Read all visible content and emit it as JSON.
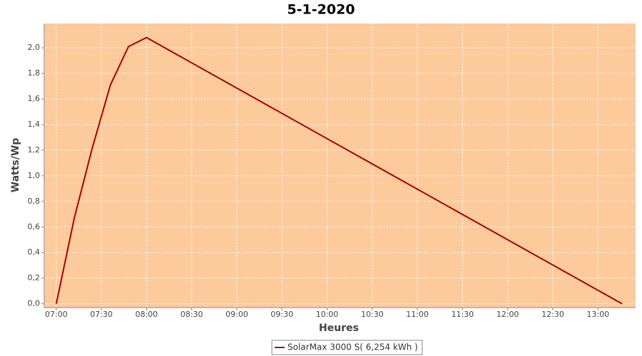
{
  "chart_data": {
    "type": "line",
    "title": "5-1-2020",
    "x_label": "Heures",
    "y_label": "Watts/Wp",
    "x": [
      "07:00",
      "07:12",
      "07:24",
      "07:36",
      "07:48",
      "08:00",
      "13:16"
    ],
    "series": [
      {
        "name": "SolarMax 3000 S( 6,254 kWh )",
        "color": "#aa0000",
        "values": [
          0,
          0.67,
          1.22,
          1.71,
          2.01,
          2.08,
          0
        ]
      }
    ],
    "xlim": [
      "06:52",
      "13:25"
    ],
    "xticks": [
      "07:00",
      "07:30",
      "08:00",
      "08:30",
      "09:00",
      "09:30",
      "10:00",
      "10:30",
      "11:00",
      "11:30",
      "12:00",
      "12:30",
      "13:00"
    ],
    "ylim": [
      -0.03,
      2.19
    ],
    "yticks": [
      {
        "value": 0,
        "label": "0,0"
      },
      {
        "value": 0.2,
        "label": "0,2"
      },
      {
        "value": 0.4,
        "label": "0,4"
      },
      {
        "value": 0.6,
        "label": "0,6"
      },
      {
        "value": 0.8,
        "label": "0,8"
      },
      {
        "value": 1,
        "label": "1,0"
      },
      {
        "value": 1.2,
        "label": "1,2"
      },
      {
        "value": 1.4,
        "label": "1,4"
      },
      {
        "value": 1.6,
        "label": "1,6"
      },
      {
        "value": 1.8,
        "label": "1,8"
      },
      {
        "value": 2,
        "label": "2,0"
      }
    ],
    "grid": true,
    "plot_background": "#fdca9b",
    "legend": "bottom"
  }
}
